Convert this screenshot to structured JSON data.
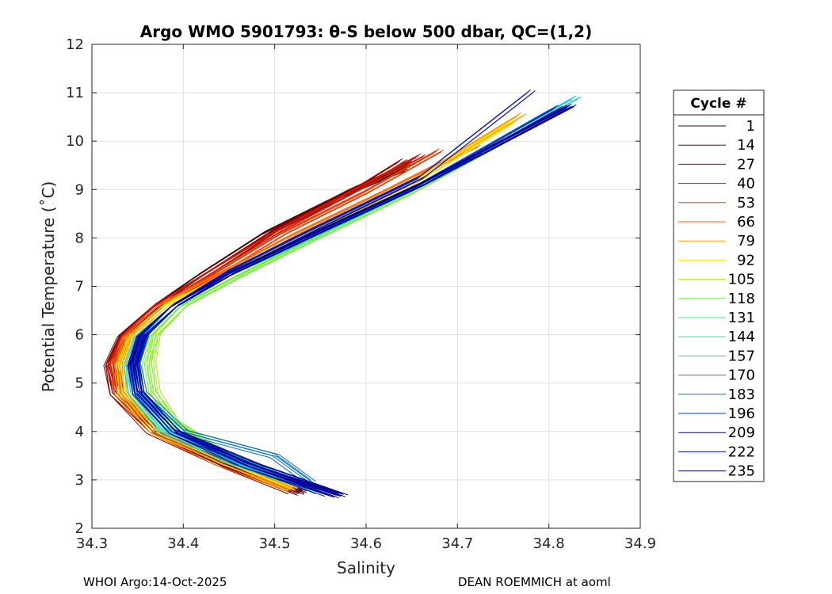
{
  "chart_data": {
    "type": "line",
    "title": "Argo WMO 5901793: θ-S below 500 dbar,  QC=(1,2)",
    "xlabel": "Salinity",
    "ylabel": "Potential Temperature (˚C)",
    "xlim": [
      34.3,
      34.9
    ],
    "ylim": [
      2,
      12
    ],
    "xticks": [
      "34.3",
      "34.4",
      "34.5",
      "34.6",
      "34.7",
      "34.8",
      "34.9"
    ],
    "yticks": [
      "2",
      "3",
      "4",
      "5",
      "6",
      "7",
      "8",
      "9",
      "10",
      "11",
      "12"
    ],
    "grid": true,
    "legend": {
      "title": "Cycle #",
      "placement": "right-outside",
      "entries": [
        "1",
        "14",
        "27",
        "40",
        "53",
        "66",
        "79",
        "92",
        "105",
        "118",
        "131",
        "144",
        "157",
        "170",
        "183",
        "196",
        "209",
        "222",
        "235"
      ],
      "colors": [
        "#400000",
        "#700000",
        "#a00000",
        "#d01a00",
        "#ee3a00",
        "#ff6a00",
        "#ffa000",
        "#ffe000",
        "#a8f000",
        "#70f040",
        "#40f080",
        "#20e0b0",
        "#10d0e0",
        "#0090c0",
        "#0070d0",
        "#0040c0",
        "#000080",
        "#0010c0",
        "#0000a0"
      ]
    },
    "series": [
      {
        "name": "1",
        "x": [
          34.53,
          34.45,
          34.37,
          34.325,
          34.32,
          34.335,
          34.37,
          34.42,
          34.49,
          34.57,
          34.64
        ],
        "y": [
          2.72,
          3.3,
          4.0,
          4.8,
          5.4,
          6.0,
          6.6,
          7.25,
          8.1,
          8.85,
          9.4
        ]
      },
      {
        "name": "14",
        "x": [
          34.53,
          34.45,
          34.37,
          34.325,
          34.318,
          34.333,
          34.37,
          34.43,
          34.5,
          34.58,
          34.65
        ],
        "y": [
          2.75,
          3.32,
          4.0,
          4.8,
          5.4,
          6.0,
          6.6,
          7.3,
          8.15,
          8.95,
          9.55
        ]
      },
      {
        "name": "27",
        "x": [
          34.52,
          34.44,
          34.365,
          34.325,
          34.32,
          34.335,
          34.37,
          34.43,
          34.5,
          34.58,
          34.64
        ],
        "y": [
          2.75,
          3.35,
          4.0,
          4.8,
          5.4,
          6.0,
          6.6,
          7.3,
          8.15,
          8.9,
          9.6
        ]
      },
      {
        "name": "40",
        "x": [
          34.52,
          34.44,
          34.37,
          34.33,
          34.322,
          34.337,
          34.372,
          34.43,
          34.5,
          34.58,
          34.66
        ],
        "y": [
          2.8,
          3.35,
          4.0,
          4.8,
          5.4,
          6.0,
          6.6,
          7.3,
          8.1,
          8.9,
          9.7
        ]
      },
      {
        "name": "53",
        "x": [
          34.52,
          34.45,
          34.37,
          34.33,
          34.325,
          34.338,
          34.375,
          34.44,
          34.51,
          34.6,
          34.68
        ],
        "y": [
          2.8,
          3.35,
          4.0,
          4.8,
          5.4,
          6.0,
          6.6,
          7.3,
          8.1,
          8.95,
          9.8
        ]
      },
      {
        "name": "66",
        "x": [
          34.52,
          34.44,
          34.37,
          34.33,
          34.328,
          34.34,
          34.375,
          34.44,
          34.52,
          34.62,
          34.72
        ],
        "y": [
          2.8,
          3.35,
          4.0,
          4.8,
          5.4,
          6.0,
          6.6,
          7.25,
          8.05,
          8.95,
          9.9
        ]
      },
      {
        "name": "79",
        "x": [
          34.52,
          34.45,
          34.37,
          34.333,
          34.33,
          34.342,
          34.38,
          34.45,
          34.53,
          34.64,
          34.77
        ],
        "y": [
          2.8,
          3.35,
          4.0,
          4.8,
          5.4,
          6.0,
          6.6,
          7.25,
          8.05,
          9.05,
          10.55
        ]
      },
      {
        "name": "92",
        "x": [
          34.52,
          34.45,
          34.37,
          34.335,
          34.332,
          34.345,
          34.38,
          34.45,
          34.53,
          34.64,
          34.76
        ],
        "y": [
          2.82,
          3.35,
          4.0,
          4.8,
          5.4,
          6.0,
          6.6,
          7.25,
          8.05,
          9.0,
          10.4
        ]
      },
      {
        "name": "105",
        "x": [
          34.51,
          34.44,
          34.39,
          34.37,
          34.365,
          34.37,
          34.4,
          34.46,
          34.54,
          34.65,
          34.77
        ],
        "y": [
          3.0,
          3.6,
          4.2,
          4.8,
          5.4,
          6.0,
          6.6,
          7.2,
          7.95,
          8.95,
          10.2
        ]
      },
      {
        "name": "118",
        "x": [
          34.51,
          34.44,
          34.39,
          34.365,
          34.36,
          34.368,
          34.4,
          34.46,
          34.54,
          34.65,
          34.78
        ],
        "y": [
          3.0,
          3.55,
          4.2,
          4.8,
          5.4,
          6.0,
          6.6,
          7.2,
          7.95,
          8.95,
          10.3
        ]
      },
      {
        "name": "131",
        "x": [
          34.53,
          34.45,
          34.38,
          34.35,
          34.345,
          34.355,
          34.39,
          34.45,
          34.54,
          34.65,
          34.78
        ],
        "y": [
          2.9,
          3.4,
          4.1,
          4.8,
          5.4,
          6.0,
          6.6,
          7.25,
          8.0,
          9.0,
          10.3
        ]
      },
      {
        "name": "144",
        "x": [
          34.54,
          34.46,
          34.38,
          34.345,
          34.342,
          34.353,
          34.39,
          34.45,
          34.54,
          34.66,
          34.8
        ],
        "y": [
          2.85,
          3.4,
          4.05,
          4.8,
          5.4,
          6.0,
          6.6,
          7.25,
          8.05,
          9.1,
          10.6
        ]
      },
      {
        "name": "157",
        "x": [
          34.55,
          34.46,
          34.38,
          34.345,
          34.34,
          34.352,
          34.39,
          34.45,
          34.54,
          34.66,
          34.83
        ],
        "y": [
          2.8,
          3.35,
          4.0,
          4.8,
          5.4,
          6.0,
          6.6,
          7.25,
          8.05,
          9.1,
          10.9
        ]
      },
      {
        "name": "170",
        "x": [
          34.55,
          34.47,
          34.39,
          34.35,
          34.345,
          34.357,
          34.39,
          34.45,
          34.54,
          34.66,
          34.81
        ],
        "y": [
          2.75,
          3.35,
          4.0,
          4.8,
          5.4,
          6.0,
          6.6,
          7.25,
          8.05,
          9.1,
          10.7
        ]
      },
      {
        "name": "183",
        "x": [
          34.54,
          34.5,
          34.4,
          34.355,
          34.348,
          34.358,
          34.39,
          34.45,
          34.54,
          34.66,
          34.8
        ],
        "y": [
          2.95,
          3.5,
          4.0,
          4.8,
          5.4,
          6.0,
          6.6,
          7.25,
          8.05,
          9.1,
          10.6
        ]
      },
      {
        "name": "196",
        "x": [
          34.57,
          34.47,
          34.39,
          34.352,
          34.346,
          34.356,
          34.39,
          34.45,
          34.54,
          34.66,
          34.81
        ],
        "y": [
          2.7,
          3.3,
          4.0,
          4.8,
          5.4,
          6.0,
          6.6,
          7.25,
          8.05,
          9.1,
          10.7
        ]
      },
      {
        "name": "209",
        "x": [
          34.57,
          34.47,
          34.39,
          34.35,
          34.344,
          34.354,
          34.39,
          34.45,
          34.54,
          34.66,
          34.82
        ],
        "y": [
          2.68,
          3.3,
          4.0,
          4.8,
          5.4,
          6.0,
          6.6,
          7.25,
          8.05,
          9.1,
          10.7
        ]
      },
      {
        "name": "222",
        "x": [
          34.56,
          34.47,
          34.39,
          34.35,
          34.345,
          34.355,
          34.39,
          34.45,
          34.54,
          34.66,
          34.78
        ],
        "y": [
          2.7,
          3.3,
          4.0,
          4.8,
          5.4,
          6.0,
          6.6,
          7.3,
          8.15,
          9.25,
          11.02
        ]
      },
      {
        "name": "235",
        "x": [
          34.575,
          34.48,
          34.39,
          34.352,
          34.347,
          34.357,
          34.39,
          34.45,
          34.54,
          34.66,
          34.825
        ],
        "y": [
          2.67,
          3.3,
          4.0,
          4.8,
          5.4,
          6.0,
          6.6,
          7.25,
          8.05,
          9.1,
          10.73
        ]
      }
    ]
  },
  "footer": {
    "left": "WHOI Argo:14-Oct-2025",
    "right": "DEAN ROEMMICH at aoml"
  }
}
